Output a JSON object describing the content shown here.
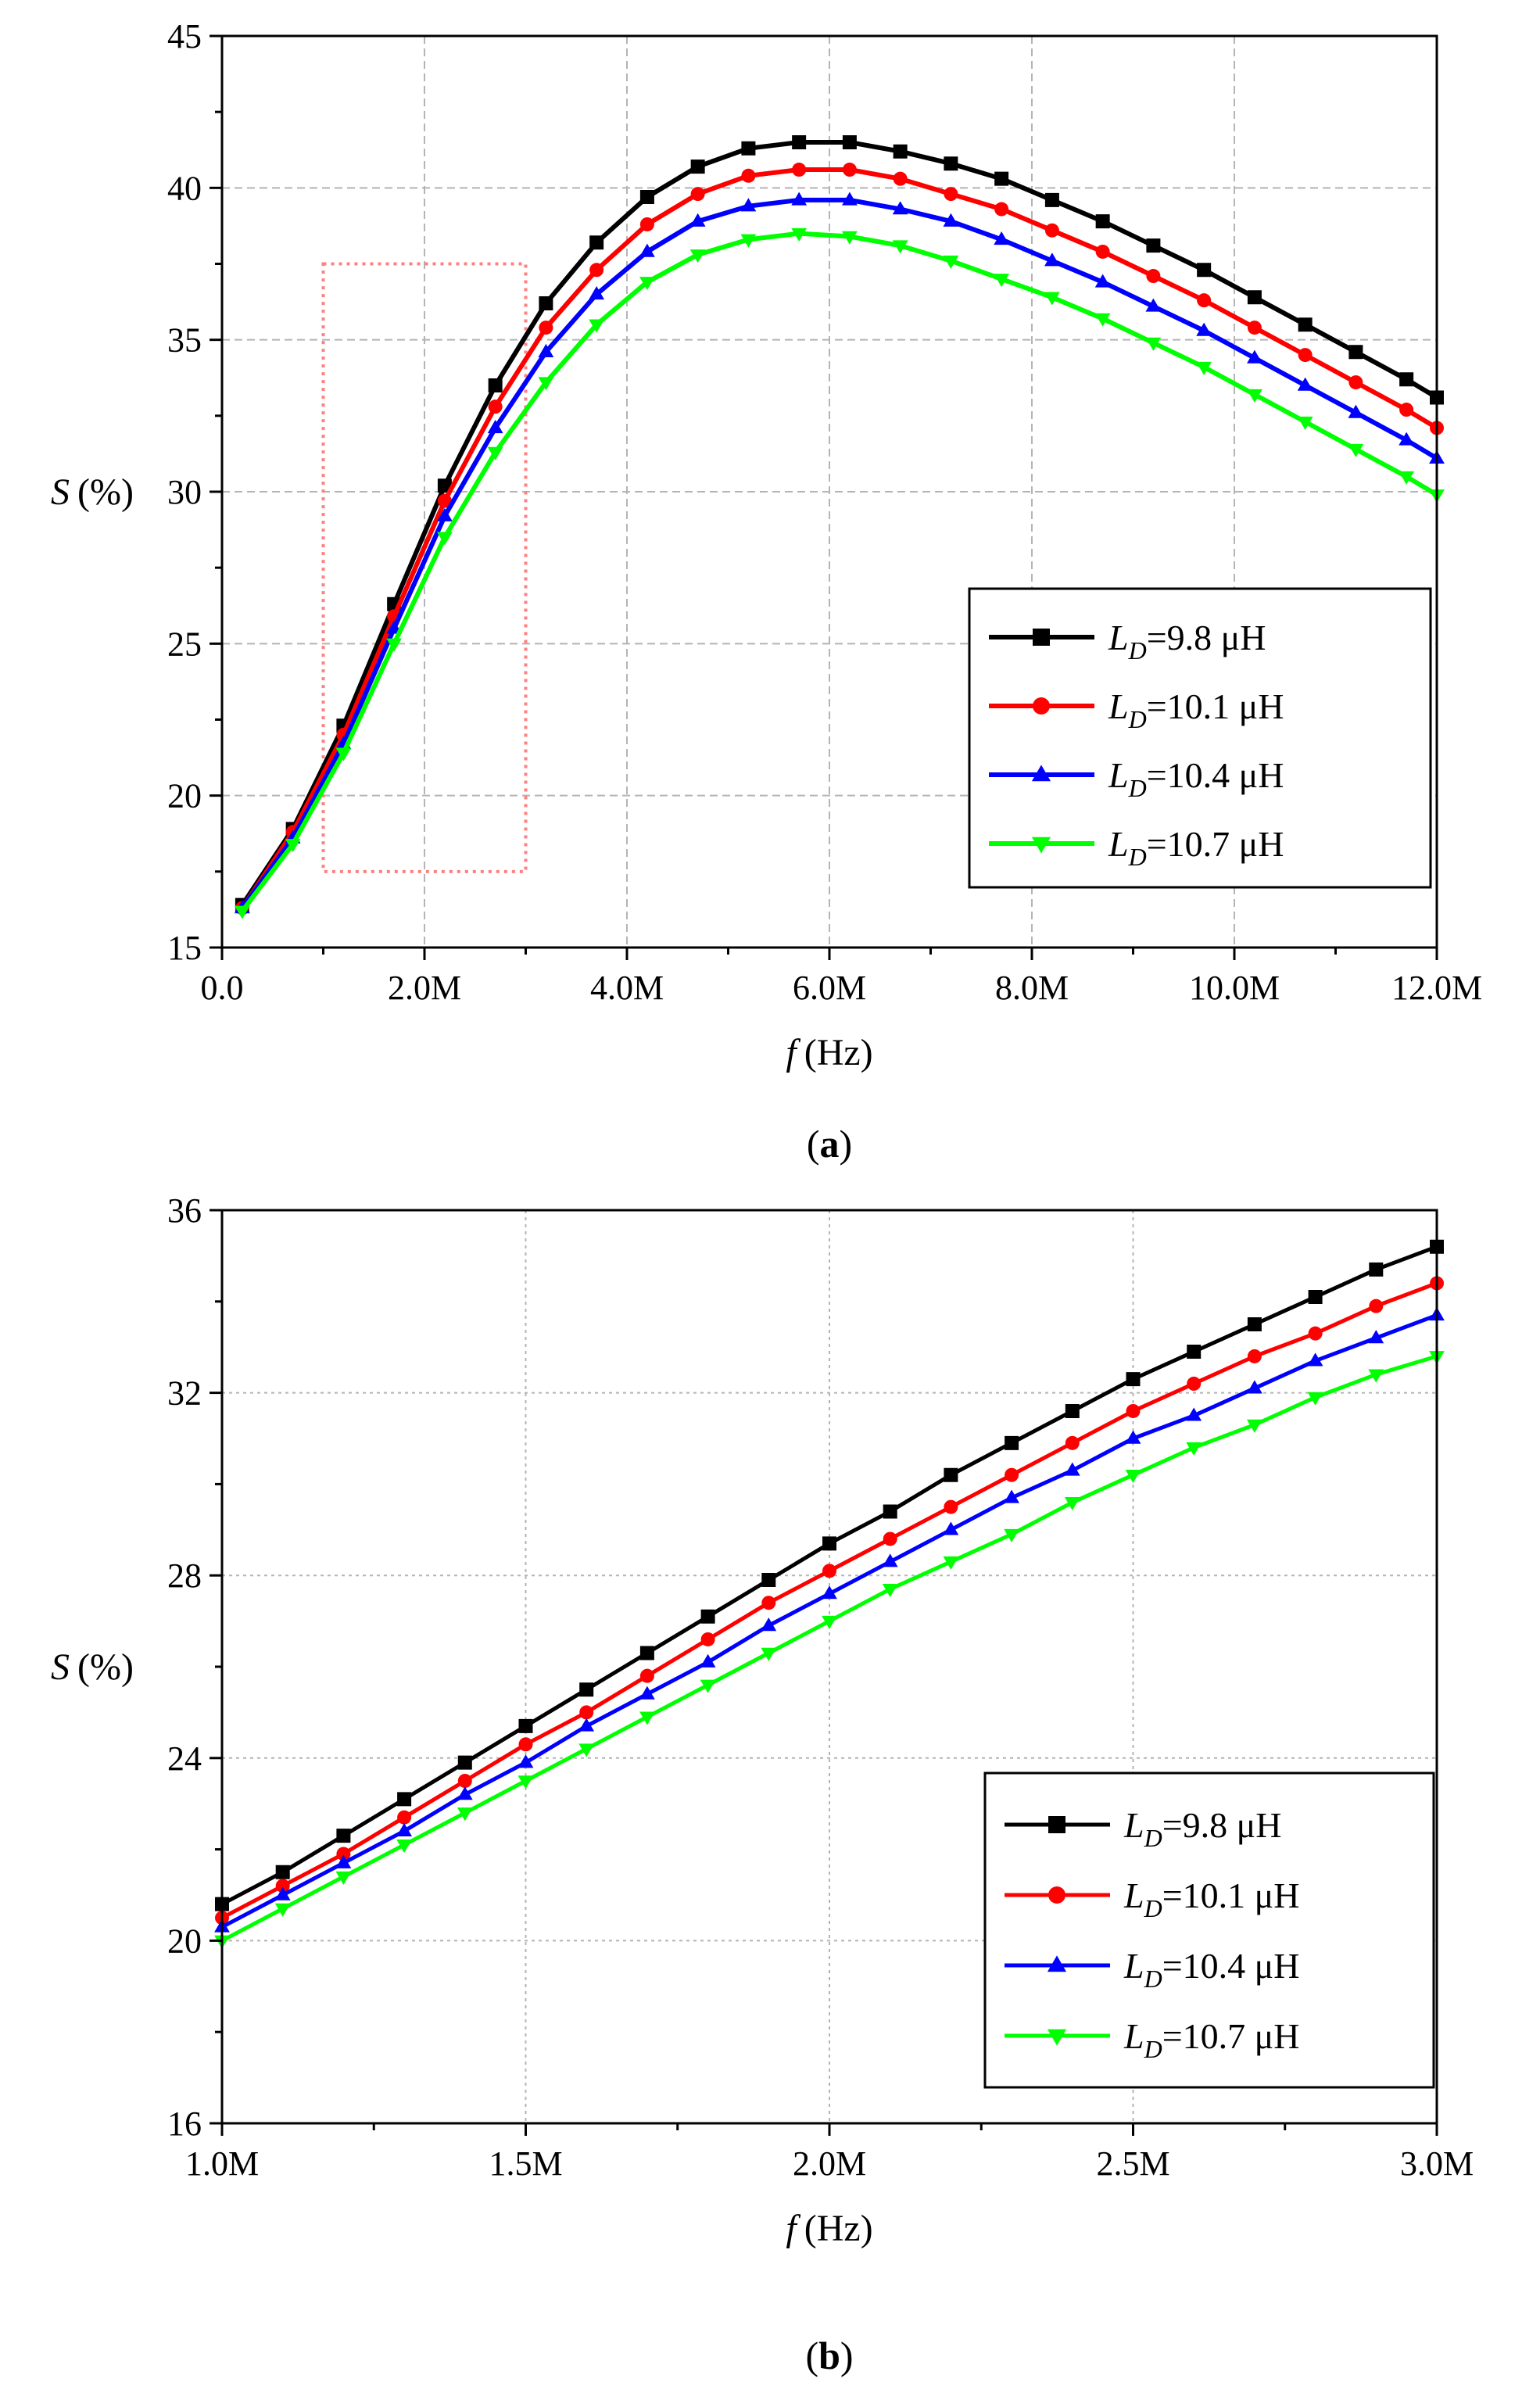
{
  "figure": {
    "units": {
      "hz": "(Hz)",
      "pct": "(%)",
      "uh": "μH"
    }
  },
  "chart_data": [
    {
      "type": "line",
      "panel_label": "a",
      "xlabel_var": "f",
      "xlabel_unit": "(Hz)",
      "ylabel_var": "S",
      "ylabel_unit": "(%)",
      "xlim": [
        0,
        12000000
      ],
      "ylim": [
        15,
        45
      ],
      "xticks": [
        0,
        2000000,
        4000000,
        6000000,
        8000000,
        10000000,
        12000000
      ],
      "xtick_labels": [
        "0.0",
        "2.0M",
        "4.0M",
        "6.0M",
        "8.0M",
        "10.0M",
        "12.0M"
      ],
      "yticks": [
        15,
        20,
        25,
        30,
        35,
        40,
        45
      ],
      "ytick_labels": [
        "15",
        "20",
        "25",
        "30",
        "35",
        "40",
        "45"
      ],
      "grid": true,
      "legend_position": "lower-right",
      "zoom_box": {
        "x": [
          1000000,
          3000000
        ],
        "y": [
          17.5,
          37.5
        ]
      },
      "x": [
        200000,
        700000,
        1200000,
        1700000,
        2200000,
        2700000,
        3200000,
        3700000,
        4200000,
        4700000,
        5200000,
        5700000,
        6200000,
        6700000,
        7200000,
        7700000,
        8200000,
        8700000,
        9200000,
        9700000,
        10200000,
        10700000,
        11200000,
        11700000,
        12000000
      ],
      "series": [
        {
          "name": "9.8",
          "legend_var": "L",
          "legend_sub": "D",
          "legend_val": "=9.8 μH",
          "color": "#000000",
          "marker": "square",
          "values": [
            16.4,
            18.9,
            22.3,
            26.3,
            30.2,
            33.5,
            36.2,
            38.2,
            39.7,
            40.7,
            41.3,
            41.5,
            41.5,
            41.2,
            40.8,
            40.3,
            39.6,
            38.9,
            38.1,
            37.3,
            36.4,
            35.5,
            34.6,
            33.7,
            33.1
          ]
        },
        {
          "name": "10.1",
          "legend_var": "L",
          "legend_sub": "D",
          "legend_val": "=10.1 μH",
          "color": "#ff0000",
          "marker": "circle",
          "values": [
            16.3,
            18.8,
            22.0,
            25.9,
            29.7,
            32.8,
            35.4,
            37.3,
            38.8,
            39.8,
            40.4,
            40.6,
            40.6,
            40.3,
            39.8,
            39.3,
            38.6,
            37.9,
            37.1,
            36.3,
            35.4,
            34.5,
            33.6,
            32.7,
            32.1
          ]
        },
        {
          "name": "10.4",
          "legend_var": "L",
          "legend_sub": "D",
          "legend_val": "=10.4 μH",
          "color": "#0000ff",
          "marker": "triangle-up",
          "values": [
            16.3,
            18.6,
            21.7,
            25.5,
            29.2,
            32.1,
            34.6,
            36.5,
            37.9,
            38.9,
            39.4,
            39.6,
            39.6,
            39.3,
            38.9,
            38.3,
            37.6,
            36.9,
            36.1,
            35.3,
            34.4,
            33.5,
            32.6,
            31.7,
            31.1
          ]
        },
        {
          "name": "10.7",
          "legend_var": "L",
          "legend_sub": "D",
          "legend_val": "=10.7 μH",
          "color": "#00ff00",
          "marker": "triangle-down",
          "values": [
            16.2,
            18.4,
            21.4,
            25.0,
            28.5,
            31.3,
            33.6,
            35.5,
            36.9,
            37.8,
            38.3,
            38.5,
            38.4,
            38.1,
            37.6,
            37.0,
            36.4,
            35.7,
            34.9,
            34.1,
            33.2,
            32.3,
            31.4,
            30.5,
            29.9
          ]
        }
      ]
    },
    {
      "type": "line",
      "panel_label": "b",
      "xlabel_var": "f",
      "xlabel_unit": "(Hz)",
      "ylabel_var": "S",
      "ylabel_unit": "(%)",
      "xlim": [
        1000000,
        3000000
      ],
      "ylim": [
        16,
        36
      ],
      "xticks": [
        1000000,
        1500000,
        2000000,
        2500000,
        3000000
      ],
      "xtick_labels": [
        "1.0M",
        "1.5M",
        "2.0M",
        "2.5M",
        "3.0M"
      ],
      "yticks": [
        16,
        20,
        24,
        28,
        32,
        36
      ],
      "ytick_labels": [
        "16",
        "20",
        "24",
        "28",
        "32",
        "36"
      ],
      "grid": true,
      "legend_position": "lower-right",
      "x": [
        1000000,
        1100000,
        1200000,
        1300000,
        1400000,
        1500000,
        1600000,
        1700000,
        1800000,
        1900000,
        2000000,
        2100000,
        2200000,
        2300000,
        2400000,
        2500000,
        2600000,
        2700000,
        2800000,
        2900000,
        3000000
      ],
      "series": [
        {
          "name": "9.8",
          "legend_var": "L",
          "legend_sub": "D",
          "legend_val": "=9.8 μH",
          "color": "#000000",
          "marker": "square",
          "values": [
            20.8,
            21.5,
            22.3,
            23.1,
            23.9,
            24.7,
            25.5,
            26.3,
            27.1,
            27.9,
            28.7,
            29.4,
            30.2,
            30.9,
            31.6,
            32.3,
            32.9,
            33.5,
            34.1,
            34.7,
            35.2
          ]
        },
        {
          "name": "10.1",
          "legend_var": "L",
          "legend_sub": "D",
          "legend_val": "=10.1 μH",
          "color": "#ff0000",
          "marker": "circle",
          "values": [
            20.5,
            21.2,
            21.9,
            22.7,
            23.5,
            24.3,
            25.0,
            25.8,
            26.6,
            27.4,
            28.1,
            28.8,
            29.5,
            30.2,
            30.9,
            31.6,
            32.2,
            32.8,
            33.3,
            33.9,
            34.4
          ]
        },
        {
          "name": "10.4",
          "legend_var": "L",
          "legend_sub": "D",
          "legend_val": "=10.4 μH",
          "color": "#0000ff",
          "marker": "triangle-up",
          "values": [
            20.3,
            21.0,
            21.7,
            22.4,
            23.2,
            23.9,
            24.7,
            25.4,
            26.1,
            26.9,
            27.6,
            28.3,
            29.0,
            29.7,
            30.3,
            31.0,
            31.5,
            32.1,
            32.7,
            33.2,
            33.7
          ]
        },
        {
          "name": "10.7",
          "legend_var": "L",
          "legend_sub": "D",
          "legend_val": "=10.7 μH",
          "color": "#00ff00",
          "marker": "triangle-down",
          "values": [
            20.0,
            20.7,
            21.4,
            22.1,
            22.8,
            23.5,
            24.2,
            24.9,
            25.6,
            26.3,
            27.0,
            27.7,
            28.3,
            28.9,
            29.6,
            30.2,
            30.8,
            31.3,
            31.9,
            32.4,
            32.8
          ]
        }
      ]
    }
  ]
}
